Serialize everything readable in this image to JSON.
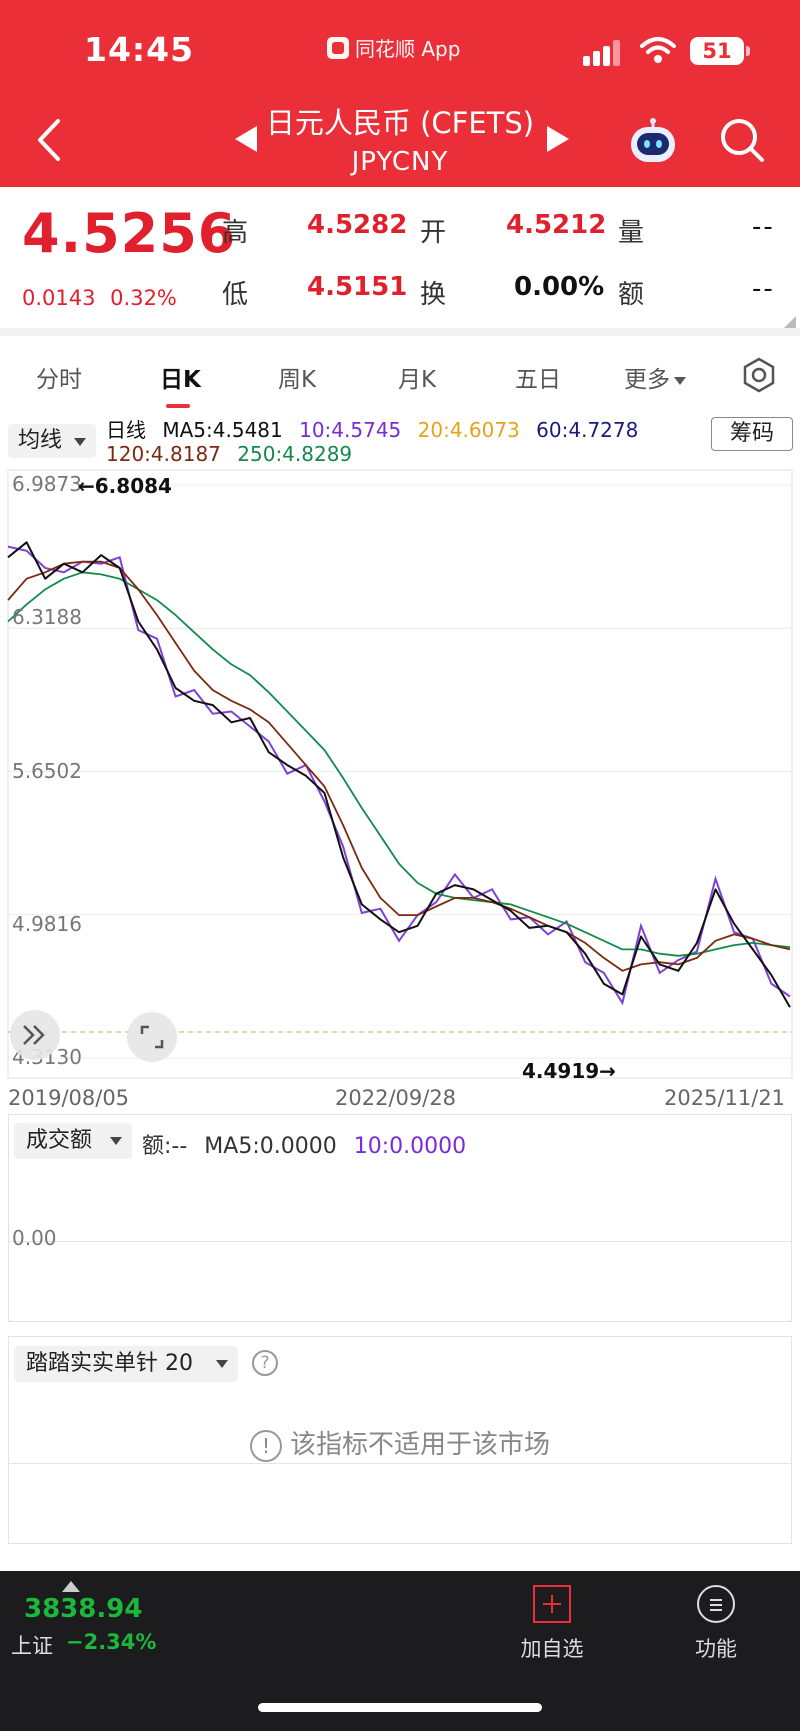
{
  "status_bar": {
    "time": "14:45",
    "app_name": "同花顺 App",
    "battery": "51"
  },
  "header": {
    "title": "日元人民币 (CFETS)",
    "code": "JPYCNY"
  },
  "quote": {
    "price": "4.5256",
    "change": "0.0143",
    "change_pct": "0.32%",
    "high_label": "高",
    "high": "4.5282",
    "open_label": "开",
    "open": "4.5212",
    "volume_label": "量",
    "volume": "--",
    "low_label": "低",
    "low": "4.5151",
    "turnover_label": "换",
    "turnover": "0.00%",
    "amount_label": "额",
    "amount": "--"
  },
  "tabs": [
    "分时",
    "日K",
    "周K",
    "月K",
    "五日",
    "更多"
  ],
  "active_tab": "日K",
  "ma_legend": {
    "selector": "均线",
    "line_type": "日线",
    "ma5": "MA5:4.5481",
    "ma10": "10:4.5745",
    "ma20": "20:4.6073",
    "ma60": "60:4.7278",
    "ma120": "120:4.8187",
    "ma250": "250:4.8289",
    "chip_button": "筹码"
  },
  "chart_data": {
    "type": "line",
    "y_ticks": [
      "6.9873",
      "6.3188",
      "5.6502",
      "4.9816",
      "4.3130"
    ],
    "ylim": [
      4.313,
      6.9873
    ],
    "x_ticks": [
      "2019/08/05",
      "2022/09/28",
      "2025/11/21"
    ],
    "max_annotation": "←6.8084",
    "min_annotation": "4.4919→",
    "current_price": 4.5256,
    "colors": {
      "price": "#6a1fd0",
      "ma5": "#111111",
      "ma10": "#7a2bd8",
      "ma20": "#f0a020",
      "ma60": "#1b1b7a",
      "ma120": "#7b2a10",
      "ma250": "#138a4a"
    },
    "series": [
      {
        "name": "MA5",
        "values": [
          6.65,
          6.72,
          6.55,
          6.62,
          6.58,
          6.66,
          6.6,
          6.35,
          6.22,
          6.04,
          5.98,
          5.96,
          5.88,
          5.9,
          5.74,
          5.68,
          5.63,
          5.55,
          5.25,
          5.03,
          4.96,
          4.9,
          4.93,
          5.08,
          5.12,
          5.1,
          5.05,
          5.0,
          4.92,
          4.93,
          4.9,
          4.8,
          4.66,
          4.61,
          4.88,
          4.75,
          4.72,
          4.85,
          5.1,
          4.94,
          4.82,
          4.7,
          4.55
        ]
      },
      {
        "name": "120",
        "values": [
          6.45,
          6.55,
          6.58,
          6.62,
          6.63,
          6.63,
          6.6,
          6.5,
          6.38,
          6.25,
          6.12,
          6.03,
          5.98,
          5.94,
          5.88,
          5.78,
          5.68,
          5.58,
          5.4,
          5.2,
          5.06,
          4.98,
          4.98,
          5.02,
          5.06,
          5.06,
          5.04,
          5.01,
          4.97,
          4.93,
          4.9,
          4.85,
          4.78,
          4.72,
          4.75,
          4.76,
          4.75,
          4.78,
          4.86,
          4.89,
          4.87,
          4.84,
          4.82
        ]
      },
      {
        "name": "250",
        "values": [
          6.35,
          6.43,
          6.5,
          6.55,
          6.58,
          6.57,
          6.55,
          6.5,
          6.45,
          6.38,
          6.3,
          6.22,
          6.15,
          6.1,
          6.02,
          5.93,
          5.84,
          5.75,
          5.62,
          5.48,
          5.35,
          5.22,
          5.13,
          5.08,
          5.06,
          5.05,
          5.04,
          5.03,
          5.0,
          4.97,
          4.94,
          4.9,
          4.86,
          4.82,
          4.82,
          4.8,
          4.79,
          4.8,
          4.82,
          4.84,
          4.85,
          4.84,
          4.83
        ]
      }
    ]
  },
  "chart_controls": {
    "expand_left": "»",
    "fullscreen": "⛶"
  },
  "volume_panel": {
    "selector": "成交额",
    "amount": "额:--",
    "ma5": "MA5:0.0000",
    "ma10": "10:0.0000",
    "y_tick": "0.00"
  },
  "indicator_panel": {
    "selector": "踏踏实实单针 20",
    "help": "?",
    "message": "该指标不适用于该市场"
  },
  "bottom_bar": {
    "index_value": "3838.94",
    "index_name": "上证",
    "index_change": "−2.34%",
    "add_watchlist": "加自选",
    "functions": "功能"
  }
}
